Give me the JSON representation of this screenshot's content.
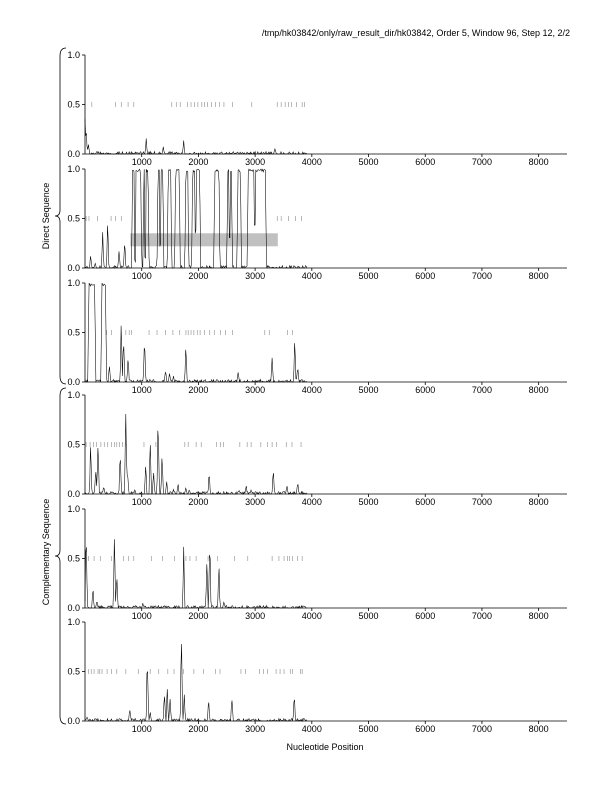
{
  "header": {
    "title": "/tmp/hk03842/only/raw_result_dir/hk03842, Order 5, Window 96, Step 12, 2/2"
  },
  "figure": {
    "xlabel": "Nucleotide Position",
    "group_labels": [
      "Direct Sequence",
      "Complementary Sequence"
    ]
  },
  "chart_data": {
    "type": "line",
    "title": "/tmp/hk03842/only/raw_result_dir/hk03842, Order 5, Window 96, Step 12, 2/2",
    "xlabel": "Nucleotide Position",
    "xlim": [
      0,
      8500
    ],
    "ylim": [
      0,
      1
    ],
    "x_ticks": [
      1000,
      2000,
      3000,
      4000,
      5000,
      6000,
      7000,
      8000
    ],
    "y_ticks": [
      "0.0",
      "0.5",
      "1.0"
    ],
    "sequence_end": 3900,
    "groups": [
      {
        "label": "Direct Sequence",
        "frames": [
          0,
          1,
          2
        ]
      },
      {
        "label": "Complementary Sequence",
        "frames": [
          3,
          4,
          5
        ]
      }
    ],
    "panels": [
      {
        "frame": 1,
        "peaks": [
          [
            0,
            0.45
          ],
          [
            20,
            0.3
          ],
          [
            60,
            0.12
          ],
          [
            210,
            0.04
          ],
          [
            1080,
            0.16
          ],
          [
            1380,
            0.08
          ],
          [
            1740,
            0.14
          ],
          [
            2400,
            0.02
          ],
          [
            3350,
            0.07
          ]
        ],
        "orf_ticks": [
          120,
          540,
          640,
          760,
          860,
          1530,
          1610,
          1680,
          1810,
          1870,
          1930,
          1990,
          2060,
          2110,
          2160,
          2230,
          2300,
          2370,
          2450,
          2600,
          2940,
          3390,
          3460,
          3530,
          3590,
          3640,
          3730,
          3830,
          3870
        ],
        "highlight": null
      },
      {
        "frame": 2,
        "plateaus": [
          [
            820,
            1000
          ],
          [
            1020,
            1130
          ],
          [
            1270,
            1390
          ],
          [
            1450,
            1530
          ],
          [
            1580,
            1680
          ],
          [
            1760,
            1830
          ],
          [
            1880,
            2040
          ],
          [
            2270,
            2380
          ],
          [
            2500,
            2600
          ],
          [
            2680,
            2760
          ],
          [
            2860,
            3200
          ]
        ],
        "dips": [
          [
            880,
            0.05
          ],
          [
            1060,
            0.1
          ],
          [
            1200,
            0.05
          ],
          [
            1330,
            0.2
          ],
          [
            1410,
            0.3
          ],
          [
            1560,
            0.45
          ],
          [
            1700,
            0.1
          ],
          [
            1850,
            0.2
          ],
          [
            1950,
            0.35
          ],
          [
            2100,
            0.05
          ],
          [
            2200,
            0.2
          ],
          [
            2420,
            0.15
          ],
          [
            2470,
            0.5
          ],
          [
            2550,
            0.3
          ],
          [
            2640,
            0.2
          ],
          [
            2800,
            0.1
          ],
          [
            2990,
            0.4
          ]
        ],
        "peaks": [
          [
            100,
            0.15
          ],
          [
            180,
            0.05
          ],
          [
            310,
            0.4
          ],
          [
            400,
            0.55
          ],
          [
            600,
            0.2
          ],
          [
            700,
            0.35
          ]
        ],
        "orf_ticks": [
          20,
          70,
          220,
          460,
          540,
          640,
          3390,
          3460,
          3590,
          3710,
          3820
        ],
        "highlight": [
          800,
          3400,
          0.29
        ]
      },
      {
        "frame": 3,
        "plateaus": [
          [
            50,
            190
          ],
          [
            280,
            380
          ]
        ],
        "peaks": [
          [
            430,
            0.2
          ],
          [
            640,
            0.7
          ],
          [
            680,
            0.55
          ],
          [
            760,
            0.3
          ],
          [
            1050,
            0.52
          ],
          [
            1420,
            0.15
          ],
          [
            1490,
            0.1
          ],
          [
            1560,
            0.06
          ],
          [
            1780,
            0.42
          ],
          [
            2700,
            0.12
          ],
          [
            3300,
            0.28
          ],
          [
            3700,
            0.48
          ],
          [
            3750,
            0.2
          ]
        ],
        "orf_ticks": [
          380,
          470,
          720,
          780,
          820,
          1130,
          1270,
          1420,
          1550,
          1670,
          1780,
          1820,
          1870,
          1920,
          1980,
          2030,
          2110,
          2200,
          2280,
          2390,
          2480,
          2600,
          3170,
          3250,
          3570,
          3660
        ],
        "highlight": null
      },
      {
        "frame": 4,
        "peaks": [
          [
            100,
            0.6
          ],
          [
            190,
            0.3
          ],
          [
            230,
            0.62
          ],
          [
            330,
            0.1
          ],
          [
            620,
            0.5
          ],
          [
            720,
            0.92
          ],
          [
            750,
            0.3
          ],
          [
            880,
            0.05
          ],
          [
            1070,
            0.35
          ],
          [
            1150,
            0.6
          ],
          [
            1210,
            0.25
          ],
          [
            1290,
            0.9
          ],
          [
            1360,
            0.5
          ],
          [
            1440,
            0.15
          ],
          [
            1560,
            0.05
          ],
          [
            1640,
            0.12
          ],
          [
            1780,
            0.08
          ],
          [
            1840,
            0.05
          ],
          [
            2190,
            0.25
          ],
          [
            2720,
            0.05
          ],
          [
            2840,
            0.1
          ],
          [
            2930,
            0.05
          ],
          [
            3320,
            0.28
          ],
          [
            3560,
            0.1
          ],
          [
            3750,
            0.15
          ]
        ],
        "orf_ticks": [
          20,
          90,
          150,
          200,
          280,
          340,
          400,
          470,
          520,
          560,
          610,
          660,
          710,
          1040,
          1250,
          1760,
          1820,
          1960,
          2050,
          2320,
          2390,
          2440,
          2730,
          2860,
          2930,
          3100,
          3220,
          3300,
          3380,
          3550,
          3650,
          3810
        ],
        "highlight": null
      },
      {
        "frame": 5,
        "peaks": [
          [
            20,
            0.98
          ],
          [
            140,
            0.25
          ],
          [
            210,
            0.1
          ],
          [
            520,
            0.88
          ],
          [
            560,
            0.4
          ],
          [
            1020,
            0.05
          ],
          [
            1400,
            0.03
          ],
          [
            1740,
            0.62
          ],
          [
            2150,
            0.55
          ],
          [
            2200,
            0.8
          ],
          [
            2360,
            0.5
          ],
          [
            2450,
            0.08
          ]
        ],
        "orf_ticks": [
          60,
          160,
          270,
          470,
          680,
          770,
          860,
          1170,
          1370,
          1580,
          1780,
          1850,
          1960,
          2170,
          2340,
          2640,
          2870,
          3300,
          3420,
          3510,
          3570,
          3610,
          3660,
          3750,
          3830
        ],
        "highlight": null
      },
      {
        "frame": 6,
        "peaks": [
          [
            40,
            0.05
          ],
          [
            180,
            0.03
          ],
          [
            790,
            0.14
          ],
          [
            1100,
            0.78
          ],
          [
            1150,
            0.1
          ],
          [
            1400,
            0.35
          ],
          [
            1450,
            0.42
          ],
          [
            1500,
            0.25
          ],
          [
            1700,
            0.98
          ],
          [
            1750,
            0.3
          ],
          [
            2180,
            0.25
          ],
          [
            2590,
            0.3
          ],
          [
            3690,
            0.3
          ]
        ],
        "orf_ticks": [
          60,
          110,
          160,
          230,
          260,
          300,
          390,
          470,
          560,
          720,
          940,
          1150,
          1300,
          1460,
          1570,
          1740,
          1920,
          2090,
          2300,
          2380,
          2750,
          2830,
          3080,
          3150,
          3220,
          3370,
          3440,
          3510,
          3620,
          3660,
          3800,
          3830
        ],
        "highlight": null
      }
    ]
  }
}
